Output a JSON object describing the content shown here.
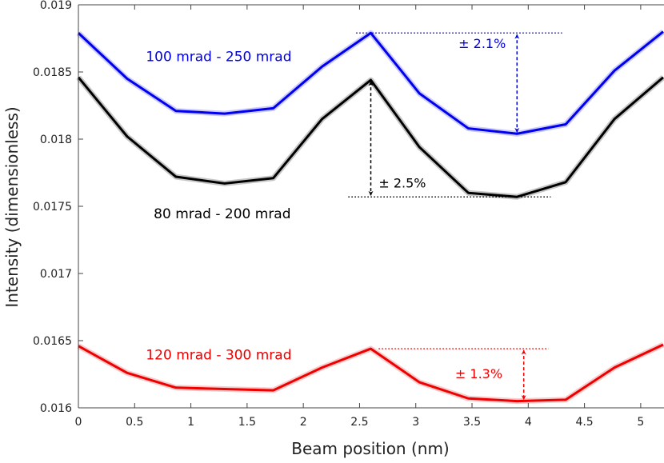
{
  "chart_data": {
    "type": "line",
    "title": "",
    "xlabel": "Beam position (nm)",
    "ylabel": "Intensity (dimensionless)",
    "xlim": [
      0,
      5.2
    ],
    "ylim": [
      0.016,
      0.019
    ],
    "xticks": [
      0,
      0.5,
      1,
      1.5,
      2,
      2.5,
      3,
      3.5,
      4,
      4.5,
      5
    ],
    "xtick_labels": [
      "0",
      "0.5",
      "1",
      "1.5",
      "2",
      "2.5",
      "3",
      "3.5",
      "4",
      "4.5",
      "5"
    ],
    "yticks": [
      0.016,
      0.0165,
      0.017,
      0.0175,
      0.018,
      0.0185,
      0.019
    ],
    "ytick_labels": [
      "0.016",
      "0.0165",
      "0.017",
      "0.0175",
      "0.018",
      "0.0185",
      "0.019"
    ],
    "grid": false,
    "x": [
      0,
      0.433,
      0.867,
      1.3,
      1.733,
      2.167,
      2.6,
      3.033,
      3.467,
      3.9,
      4.333,
      4.767,
      5.2
    ],
    "series": [
      {
        "name": "100 mrad - 250 mrad",
        "color": "#0000ee",
        "halo": "#a8a8f8",
        "values": [
          0.01879,
          0.01845,
          0.01821,
          0.01819,
          0.01823,
          0.01854,
          0.01879,
          0.01834,
          0.01808,
          0.01804,
          0.01811,
          0.01851,
          0.0188
        ]
      },
      {
        "name": "80 mrad - 200 mrad",
        "color": "#000000",
        "halo": "#a0a0a0",
        "values": [
          0.01846,
          0.01802,
          0.01772,
          0.01767,
          0.01771,
          0.01815,
          0.01844,
          0.01794,
          0.0176,
          0.01757,
          0.01768,
          0.01815,
          0.01846
        ]
      },
      {
        "name": "120 mrad - 300 mrad",
        "color": "#ee0000",
        "halo": "#f4a8a8",
        "values": [
          0.01646,
          0.01626,
          0.01615,
          0.01614,
          0.01613,
          0.0163,
          0.01644,
          0.01619,
          0.01607,
          0.01605,
          0.01606,
          0.0163,
          0.01647
        ]
      }
    ],
    "annotations": [
      {
        "text": "± 2.1%",
        "color": "#0000ee",
        "x": 3.9,
        "y_top": 0.01879,
        "y_bottom": 0.01804,
        "line_x": [
          2.47,
          4.3
        ],
        "line_y": 0.01879,
        "label_x": 3.38,
        "label_y": 0.01868
      },
      {
        "text": "± 2.5%",
        "color": "#000000",
        "x": 2.6,
        "y_top": 0.01844,
        "y_bottom": 0.01757,
        "line_x": [
          2.4,
          4.2
        ],
        "line_y": 0.01757,
        "label_x": 2.67,
        "label_y": 0.01764
      },
      {
        "text": "± 1.3%",
        "color": "#ee0000",
        "x": 3.96,
        "y_top": 0.01644,
        "y_bottom": 0.01605,
        "line_x": [
          2.67,
          4.18
        ],
        "line_y": 0.01644,
        "label_x": 3.35,
        "label_y": 0.01622
      }
    ],
    "series_labels": [
      {
        "text": "100 mrad - 250 mrad",
        "color": "#0000ee",
        "x": 0.6,
        "y": 0.01858
      },
      {
        "text": "80 mrad - 200 mrad",
        "color": "#000000",
        "x": 0.67,
        "y": 0.01741
      },
      {
        "text": "120 mrad - 300 mrad",
        "color": "#ee0000",
        "x": 0.6,
        "y": 0.01636
      }
    ]
  }
}
